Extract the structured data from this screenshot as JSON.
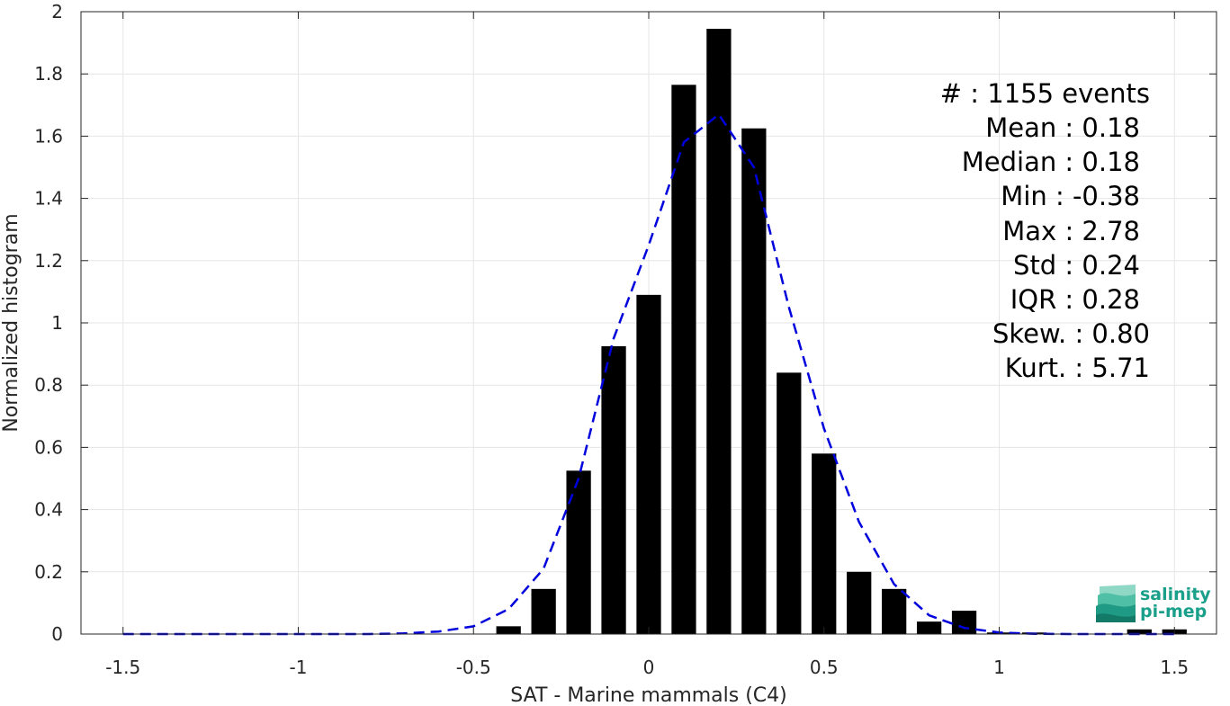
{
  "chart_data": {
    "type": "bar",
    "xlabel": "SAT - Marine mammals (C4)",
    "ylabel": "Normalized histogram",
    "xlim": [
      -1.62,
      1.62
    ],
    "ylim": [
      0,
      2
    ],
    "grid": true,
    "x_ticks": [
      -1.5,
      -1,
      -0.5,
      0,
      0.5,
      1,
      1.5
    ],
    "x_tick_labels": [
      "-1.5",
      "-1",
      "-0.5",
      "0",
      "0.5",
      "1",
      "1.5"
    ],
    "y_ticks": [
      0,
      0.2,
      0.4,
      0.6,
      0.8,
      1,
      1.2,
      1.4,
      1.6,
      1.8,
      2
    ],
    "y_tick_labels": [
      "0",
      "0.2",
      "0.4",
      "0.6",
      "0.8",
      "1",
      "1.2",
      "1.4",
      "1.6",
      "1.8",
      "2"
    ],
    "bar_color": "#000000",
    "bar_width": 0.07,
    "bars": {
      "x": [
        -0.4,
        -0.3,
        -0.2,
        -0.1,
        0.0,
        0.1,
        0.2,
        0.3,
        0.4,
        0.5,
        0.6,
        0.7,
        0.8,
        0.9,
        1.0,
        1.1,
        1.4,
        1.5
      ],
      "values": [
        0.025,
        0.145,
        0.525,
        0.925,
        1.09,
        1.765,
        1.945,
        1.625,
        0.84,
        0.58,
        0.2,
        0.145,
        0.04,
        0.075,
        0.005,
        0.005,
        0.015,
        0.015
      ]
    },
    "fit_curve": {
      "style": "dashed",
      "color": "#0000dd",
      "x": [
        -1.5,
        -1.4,
        -1.3,
        -1.2,
        -1.1,
        -1.0,
        -0.9,
        -0.8,
        -0.7,
        -0.6,
        -0.5,
        -0.4,
        -0.3,
        -0.2,
        -0.1,
        0.0,
        0.1,
        0.2,
        0.3,
        0.4,
        0.5,
        0.6,
        0.7,
        0.8,
        0.9,
        1.0,
        1.1,
        1.2,
        1.3,
        1.4,
        1.5
      ],
      "values": [
        0,
        0,
        0,
        0,
        0,
        0,
        0,
        0,
        0.002,
        0.008,
        0.025,
        0.08,
        0.21,
        0.5,
        0.95,
        1.25,
        1.58,
        1.67,
        1.5,
        1.05,
        0.66,
        0.36,
        0.16,
        0.06,
        0.02,
        0.005,
        0.001,
        0,
        0,
        0,
        0
      ]
    },
    "stats": [
      {
        "label": "#  : 1155 events"
      },
      {
        "label": "Mean : 0.18"
      },
      {
        "label": "Median : 0.18"
      },
      {
        "label": "Min : -0.38"
      },
      {
        "label": "Max : 2.78"
      },
      {
        "label": "Std : 0.24"
      },
      {
        "label": "IQR : 0.28"
      },
      {
        "label": "Skew. : 0.80"
      },
      {
        "label": "Kurt. : 5.71"
      }
    ]
  },
  "logo": {
    "line1": "salinity",
    "line2": "pi-mep",
    "color": "#1aa08a"
  }
}
